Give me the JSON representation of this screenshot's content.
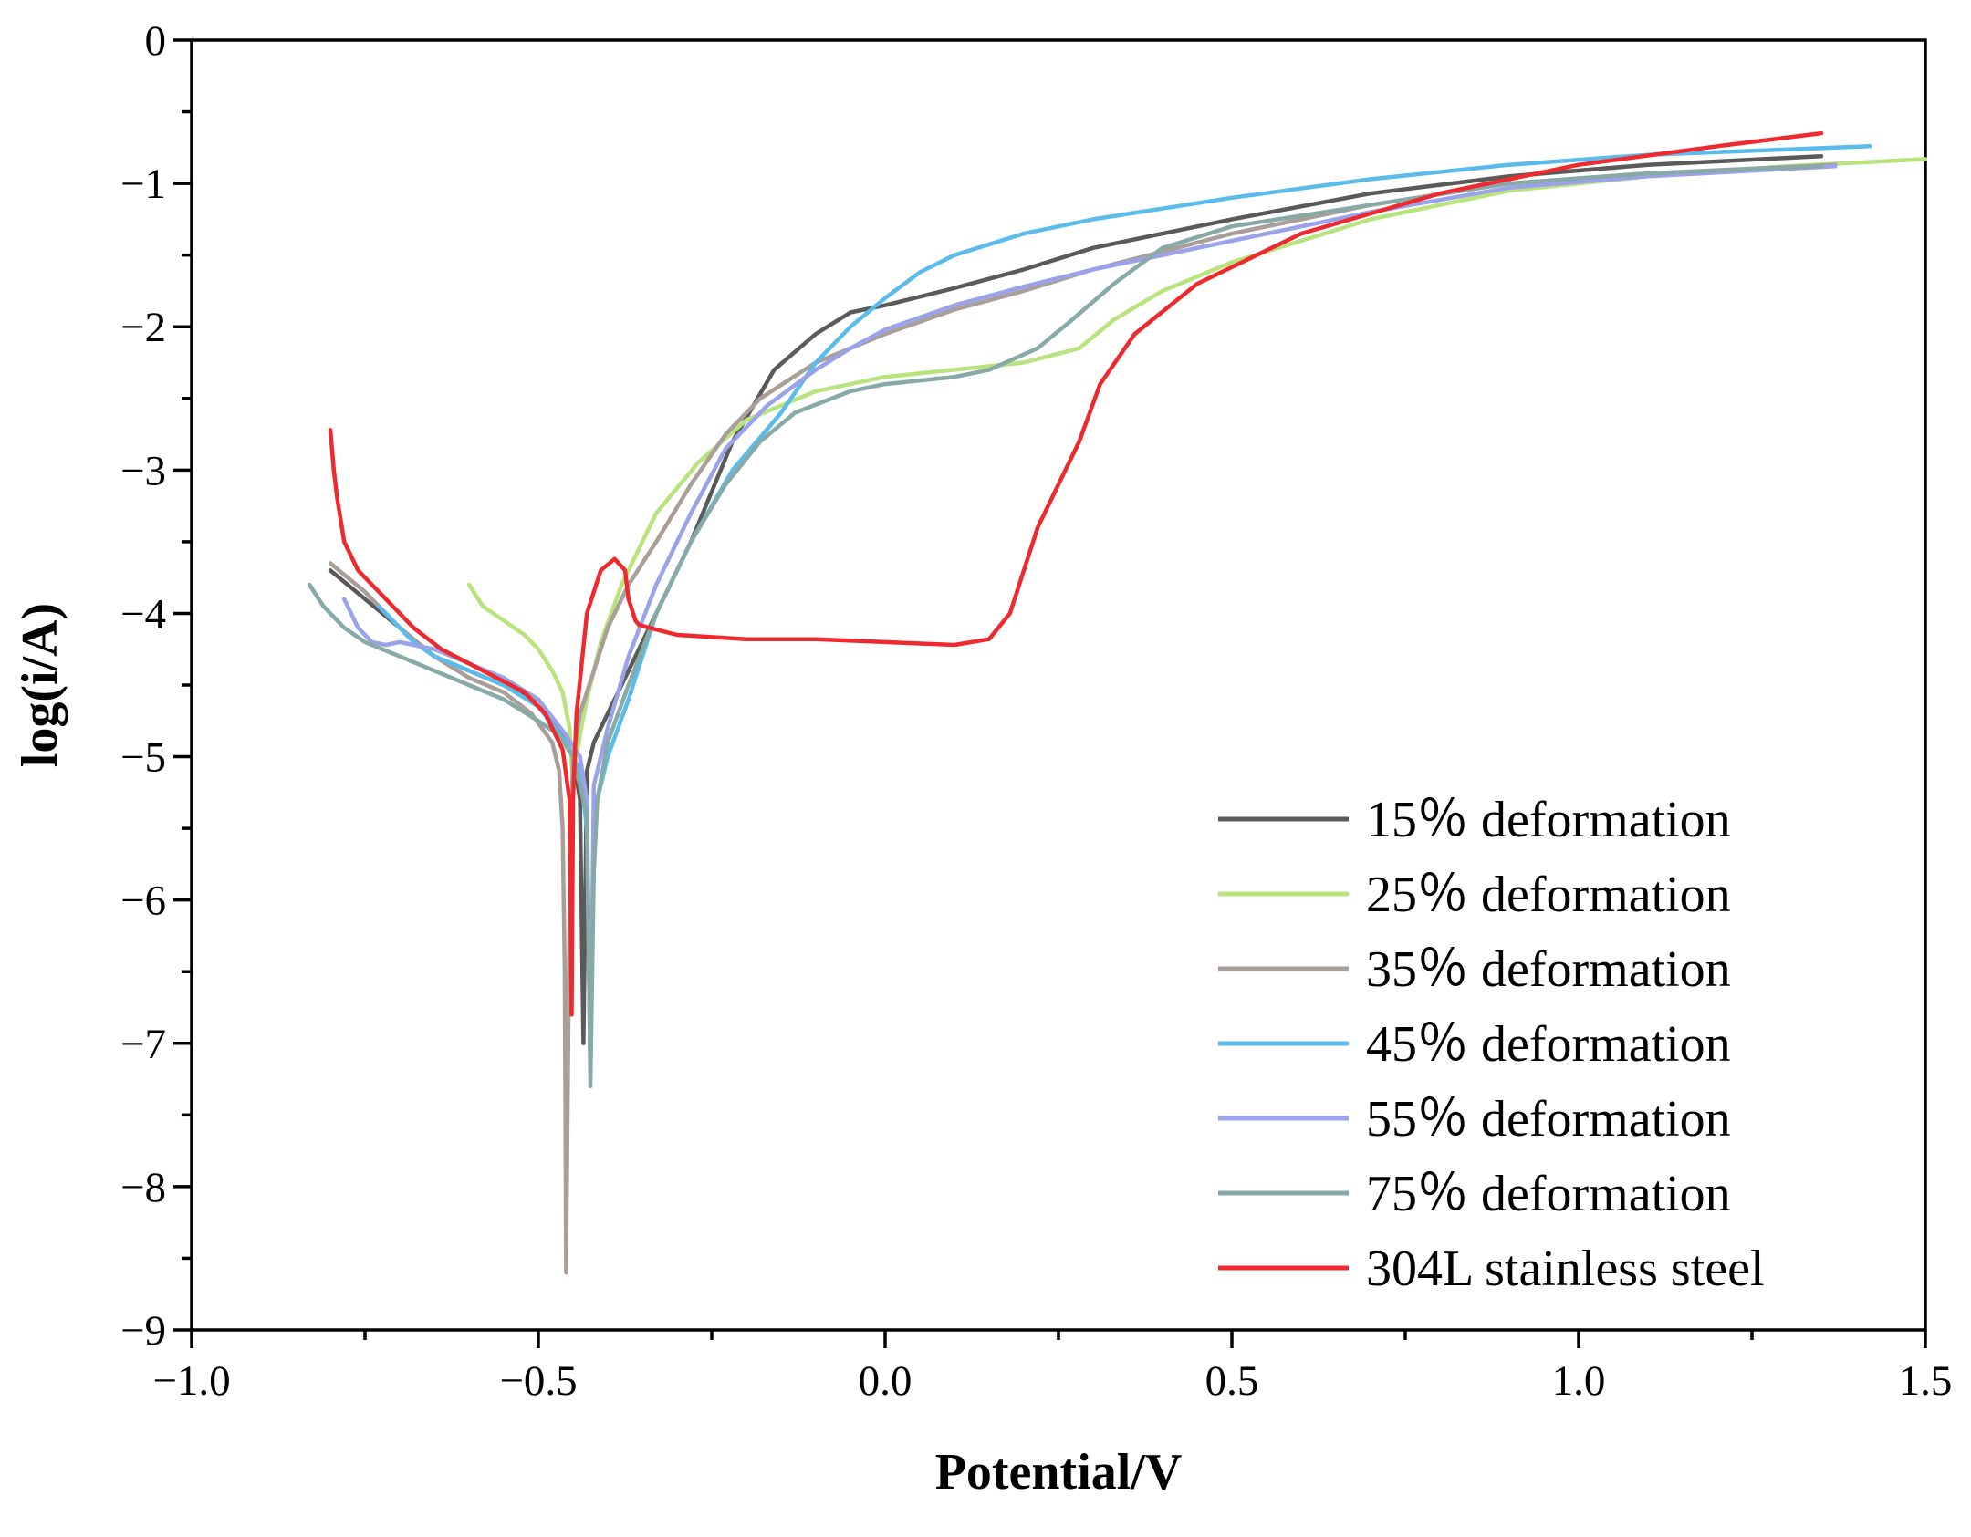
{
  "chart_data": {
    "type": "line",
    "title": "",
    "xlabel": "Potential/V",
    "ylabel": "log(i/A)",
    "xlim": [
      -1.0,
      1.5
    ],
    "ylim": [
      -9,
      0
    ],
    "xticks": [
      -1.0,
      -0.5,
      0.0,
      0.5,
      1.0,
      1.5
    ],
    "xtick_labels": [
      "−1.0",
      "−0.5",
      "0.0",
      "0.5",
      "1.0",
      "1.5"
    ],
    "yticks": [
      0,
      -1,
      -2,
      -3,
      -4,
      -5,
      -6,
      -7,
      -8,
      -9
    ],
    "ytick_labels": [
      "0",
      "−1",
      "−2",
      "−3",
      "−4",
      "−5",
      "−6",
      "−7",
      "−8",
      "−9"
    ],
    "legend_position": "bottom-right",
    "series": [
      {
        "name": "15％ deformation",
        "color": "#5a5a5a",
        "x": [
          -0.8,
          -0.75,
          -0.7,
          -0.65,
          -0.6,
          -0.55,
          -0.5,
          -0.47,
          -0.45,
          -0.44,
          -0.435,
          -0.43,
          -0.42,
          -0.4,
          -0.37,
          -0.33,
          -0.28,
          -0.22,
          -0.16,
          -0.1,
          -0.05,
          0.0,
          0.1,
          0.2,
          0.3,
          0.5,
          0.7,
          0.9,
          1.1,
          1.35
        ],
        "y": [
          -3.7,
          -3.9,
          -4.1,
          -4.3,
          -4.4,
          -4.5,
          -4.6,
          -4.8,
          -5.0,
          -5.3,
          -7.0,
          -5.1,
          -4.9,
          -4.7,
          -4.4,
          -4.0,
          -3.5,
          -2.8,
          -2.3,
          -2.05,
          -1.9,
          -1.85,
          -1.73,
          -1.6,
          -1.45,
          -1.25,
          -1.07,
          -0.95,
          -0.87,
          -0.81
        ]
      },
      {
        "name": "25％ deformation",
        "color": "#b8e37d",
        "x": [
          -0.6,
          -0.58,
          -0.55,
          -0.52,
          -0.5,
          -0.48,
          -0.465,
          -0.455,
          -0.45,
          -0.445,
          -0.44,
          -0.43,
          -0.41,
          -0.38,
          -0.33,
          -0.27,
          -0.2,
          -0.1,
          0.0,
          0.1,
          0.2,
          0.28,
          0.33,
          0.4,
          0.5,
          0.7,
          0.9,
          1.1,
          1.3,
          1.5
        ],
        "y": [
          -3.8,
          -3.95,
          -4.05,
          -4.15,
          -4.25,
          -4.4,
          -4.55,
          -4.8,
          -5.2,
          -5.0,
          -4.85,
          -4.6,
          -4.2,
          -3.8,
          -3.3,
          -2.95,
          -2.65,
          -2.45,
          -2.35,
          -2.3,
          -2.25,
          -2.15,
          -1.95,
          -1.75,
          -1.55,
          -1.25,
          -1.05,
          -0.95,
          -0.88,
          -0.83
        ]
      },
      {
        "name": "35％ deformation",
        "color": "#aa9e98",
        "x": [
          -0.8,
          -0.75,
          -0.7,
          -0.65,
          -0.6,
          -0.55,
          -0.51,
          -0.48,
          -0.47,
          -0.465,
          -0.462,
          -0.46,
          -0.455,
          -0.45,
          -0.44,
          -0.42,
          -0.4,
          -0.37,
          -0.33,
          -0.28,
          -0.23,
          -0.18,
          -0.1,
          0.0,
          0.1,
          0.2,
          0.3,
          0.5,
          0.7,
          0.9,
          1.1,
          1.37
        ],
        "y": [
          -3.65,
          -3.85,
          -4.1,
          -4.3,
          -4.45,
          -4.55,
          -4.7,
          -4.9,
          -5.1,
          -5.5,
          -6.5,
          -8.6,
          -6.0,
          -5.0,
          -4.7,
          -4.4,
          -4.1,
          -3.8,
          -3.5,
          -3.1,
          -2.75,
          -2.5,
          -2.25,
          -2.05,
          -1.88,
          -1.75,
          -1.6,
          -1.35,
          -1.15,
          -1.0,
          -0.93,
          -0.87
        ]
      },
      {
        "name": "45％ deformation",
        "color": "#5bbcec",
        "x": [
          -0.73,
          -0.7,
          -0.68,
          -0.65,
          -0.6,
          -0.55,
          -0.5,
          -0.46,
          -0.44,
          -0.43,
          -0.425,
          -0.42,
          -0.4,
          -0.37,
          -0.33,
          -0.28,
          -0.22,
          -0.15,
          -0.1,
          -0.05,
          0.0,
          0.05,
          0.1,
          0.2,
          0.3,
          0.5,
          0.7,
          0.9,
          1.1,
          1.42
        ],
        "y": [
          -3.95,
          -4.1,
          -4.2,
          -4.3,
          -4.4,
          -4.5,
          -4.65,
          -4.9,
          -5.1,
          -5.5,
          -7.2,
          -5.4,
          -5.0,
          -4.6,
          -4.0,
          -3.5,
          -3.0,
          -2.6,
          -2.25,
          -2.0,
          -1.8,
          -1.62,
          -1.5,
          -1.35,
          -1.25,
          -1.1,
          -0.97,
          -0.87,
          -0.8,
          -0.74
        ]
      },
      {
        "name": "55％ deformation",
        "color": "#9aa2ea",
        "x": [
          -0.78,
          -0.76,
          -0.74,
          -0.72,
          -0.7,
          -0.65,
          -0.6,
          -0.55,
          -0.5,
          -0.46,
          -0.44,
          -0.43,
          -0.425,
          -0.42,
          -0.4,
          -0.37,
          -0.33,
          -0.28,
          -0.23,
          -0.17,
          -0.1,
          -0.05,
          0.0,
          0.1,
          0.2,
          0.3,
          0.5,
          0.7,
          0.9,
          1.1,
          1.37
        ],
        "y": [
          -3.9,
          -4.1,
          -4.2,
          -4.22,
          -4.2,
          -4.25,
          -4.35,
          -4.45,
          -4.6,
          -4.85,
          -5.0,
          -5.3,
          -7.2,
          -5.2,
          -4.8,
          -4.3,
          -3.8,
          -3.3,
          -2.85,
          -2.55,
          -2.3,
          -2.15,
          -2.02,
          -1.85,
          -1.72,
          -1.6,
          -1.4,
          -1.2,
          -1.03,
          -0.95,
          -0.88
        ]
      },
      {
        "name": "75％ deformation",
        "color": "#88aaa6",
        "x": [
          -0.83,
          -0.81,
          -0.78,
          -0.75,
          -0.7,
          -0.65,
          -0.6,
          -0.55,
          -0.5,
          -0.47,
          -0.45,
          -0.43,
          -0.425,
          -0.42,
          -0.415,
          -0.4,
          -0.37,
          -0.33,
          -0.28,
          -0.23,
          -0.18,
          -0.13,
          -0.05,
          0.0,
          0.1,
          0.15,
          0.22,
          0.27,
          0.33,
          0.4,
          0.5,
          0.7,
          0.9,
          1.1,
          1.35
        ],
        "y": [
          -3.8,
          -3.95,
          -4.1,
          -4.2,
          -4.3,
          -4.4,
          -4.5,
          -4.6,
          -4.75,
          -4.85,
          -5.0,
          -5.4,
          -7.3,
          -5.8,
          -5.3,
          -4.9,
          -4.5,
          -4.0,
          -3.5,
          -3.1,
          -2.8,
          -2.6,
          -2.45,
          -2.4,
          -2.35,
          -2.3,
          -2.15,
          -1.95,
          -1.7,
          -1.45,
          -1.3,
          -1.15,
          -1.0,
          -0.93,
          -0.88
        ]
      },
      {
        "name": "304L stainless steel",
        "color": "#ee2a2e",
        "x": [
          -0.8,
          -0.795,
          -0.79,
          -0.78,
          -0.76,
          -0.72,
          -0.68,
          -0.64,
          -0.6,
          -0.56,
          -0.52,
          -0.49,
          -0.465,
          -0.455,
          -0.452,
          -0.45,
          -0.445,
          -0.43,
          -0.41,
          -0.39,
          -0.375,
          -0.37,
          -0.36,
          -0.355,
          -0.34,
          -0.3,
          -0.2,
          -0.1,
          0.0,
          0.1,
          0.15,
          0.18,
          0.2,
          0.22,
          0.25,
          0.28,
          0.31,
          0.36,
          0.45,
          0.6,
          0.8,
          1.0,
          1.2,
          1.35
        ],
        "y": [
          -2.72,
          -3.0,
          -3.2,
          -3.5,
          -3.7,
          -3.9,
          -4.1,
          -4.25,
          -4.35,
          -4.45,
          -4.55,
          -4.7,
          -4.95,
          -5.3,
          -6.8,
          -5.3,
          -4.7,
          -4.0,
          -3.7,
          -3.62,
          -3.7,
          -3.9,
          -4.05,
          -4.08,
          -4.1,
          -4.15,
          -4.18,
          -4.18,
          -4.2,
          -4.22,
          -4.18,
          -4.0,
          -3.7,
          -3.4,
          -3.1,
          -2.8,
          -2.4,
          -2.05,
          -1.7,
          -1.35,
          -1.07,
          -0.87,
          -0.74,
          -0.65
        ]
      }
    ]
  }
}
